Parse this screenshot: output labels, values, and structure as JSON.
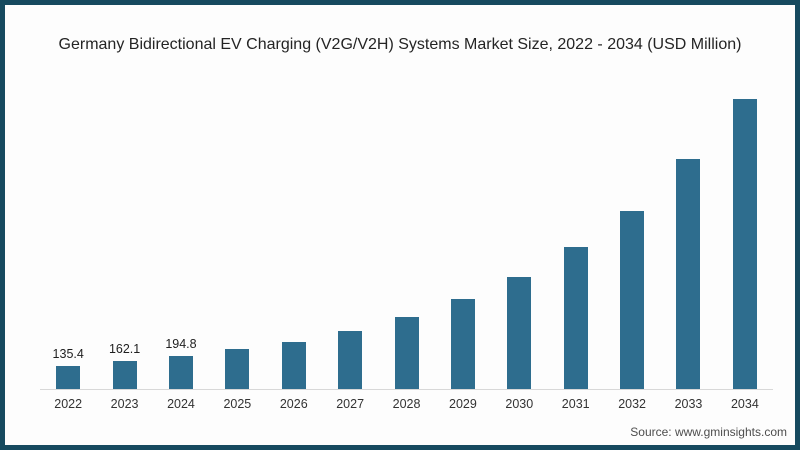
{
  "frame": {
    "border_color": "#164a5f",
    "background_color": "#fdfdfd"
  },
  "chart_data": {
    "type": "bar",
    "title": "Germany Bidirectional EV Charging (V2G/V2H) Systems Market Size, 2022 - 2034 (USD Million)",
    "xlabel": "",
    "ylabel": "",
    "categories": [
      "2022",
      "2023",
      "2024",
      "2025",
      "2026",
      "2027",
      "2028",
      "2029",
      "2030",
      "2031",
      "2032",
      "2033",
      "2034"
    ],
    "values": [
      135.4,
      162.1,
      194.8,
      233,
      277,
      340,
      424,
      528,
      656,
      830,
      1043,
      1345,
      1699
    ],
    "data_labels": [
      "135.4",
      "162.1",
      "194.8",
      "",
      "",
      "",
      "",
      "",
      "",
      "",
      "",
      "",
      ""
    ],
    "ylim": [
      0,
      1750
    ],
    "grid": false,
    "legend": "none",
    "bar_color": "#2e6d8e",
    "axis_line_color": "#d8d8d8",
    "value_label_color": "#1f1f1f",
    "tick_label_color": "#333333"
  },
  "footer": {
    "source": "Source: www.gminsights.com"
  }
}
